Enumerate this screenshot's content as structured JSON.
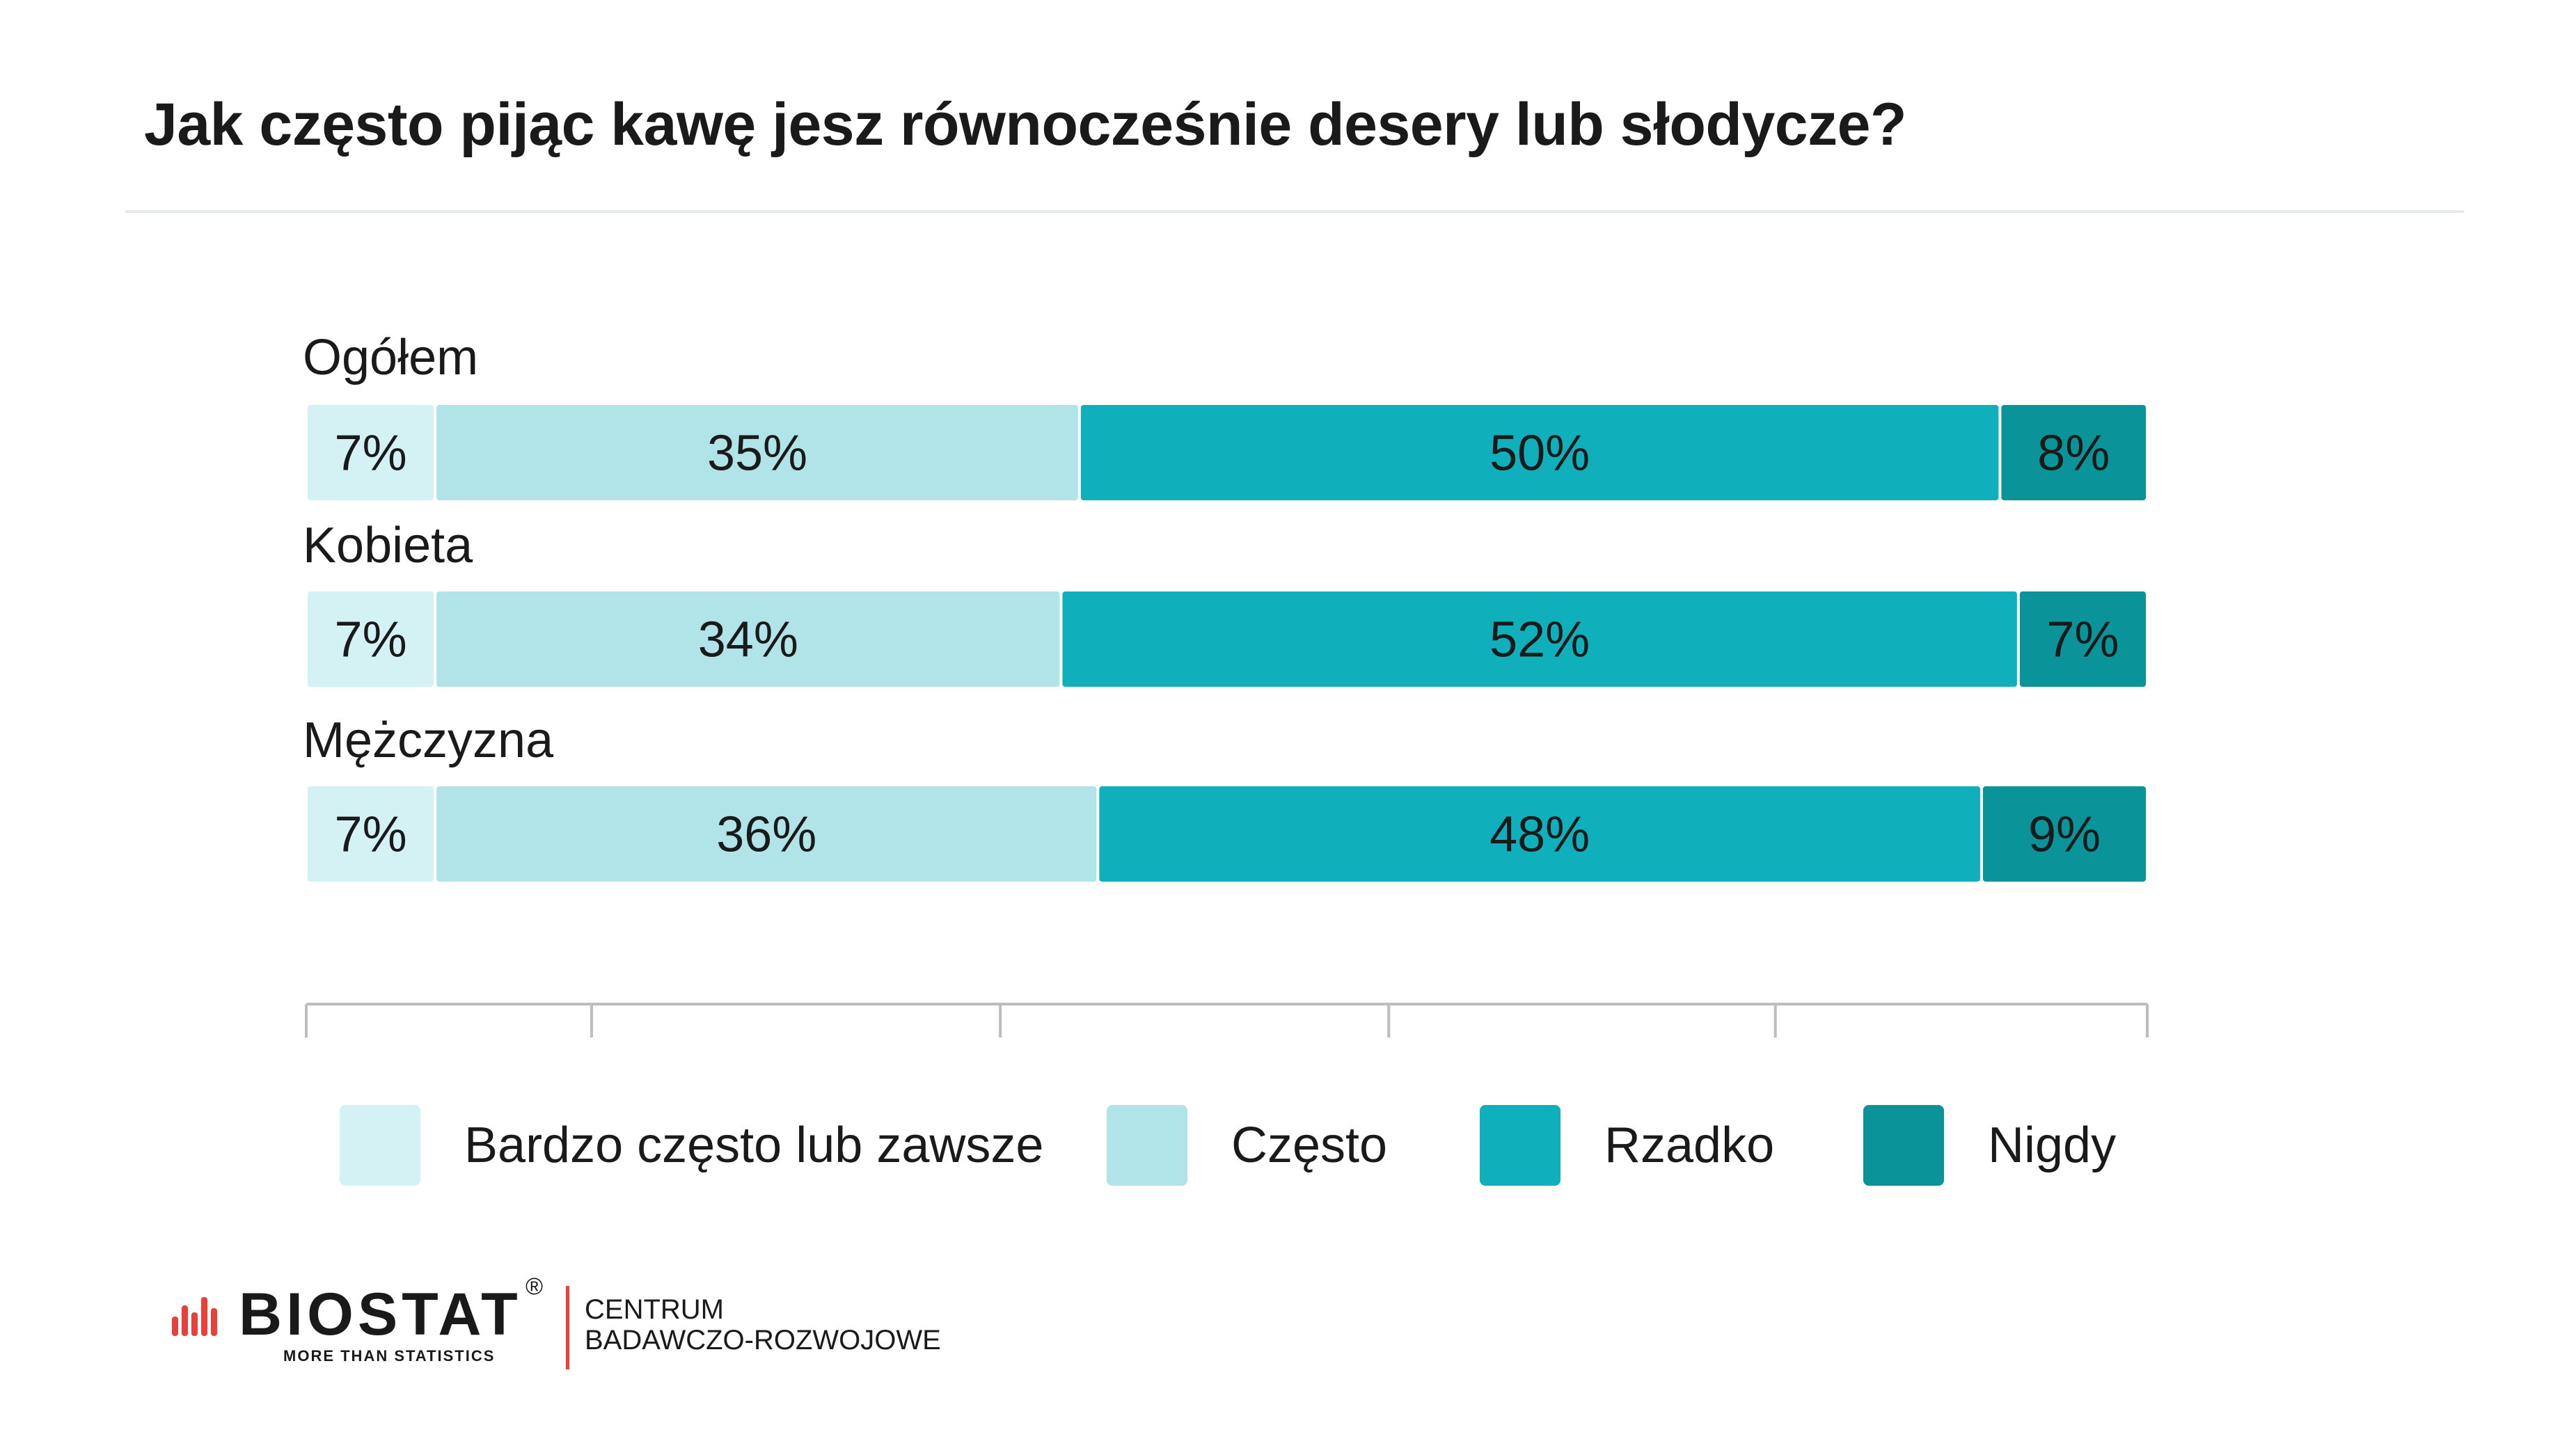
{
  "title": "Jak często pijąc kawę jesz równocześnie desery lub słodycze?",
  "chart_data": {
    "type": "bar",
    "orientation": "horizontal",
    "stacked": true,
    "categories": [
      "Ogółem",
      "Kobieta",
      "Mężczyzna"
    ],
    "series": [
      {
        "name": "Bardzo często lub zawsze",
        "color": "#d4f1f3",
        "values": [
          7,
          7,
          7
        ],
        "labels": [
          "7%",
          "7%",
          "7%"
        ]
      },
      {
        "name": "Często",
        "color": "#b0e4e8",
        "values": [
          35,
          34,
          36
        ],
        "labels": [
          "35%",
          "34%",
          "36%"
        ]
      },
      {
        "name": "Rzadko",
        "color": "#0fb0bb",
        "values": [
          50,
          52,
          48
        ],
        "labels": [
          "50%",
          "52%",
          "48%"
        ]
      },
      {
        "name": "Nigdy",
        "color": "#0a9399",
        "values": [
          8,
          7,
          9
        ],
        "labels": [
          "8%",
          "7%",
          "9%"
        ]
      }
    ],
    "xlim": [
      0,
      100
    ],
    "grid": false,
    "legend_position": "bottom"
  },
  "logo": {
    "name": "BIOSTAT",
    "registered": "®",
    "tagline": "MORE THAN STATISTICS",
    "subtitle_line1": "CENTRUM",
    "subtitle_line2": "BADAWCZO-ROZWOJOWE",
    "accent_color": "#e8403b"
  }
}
